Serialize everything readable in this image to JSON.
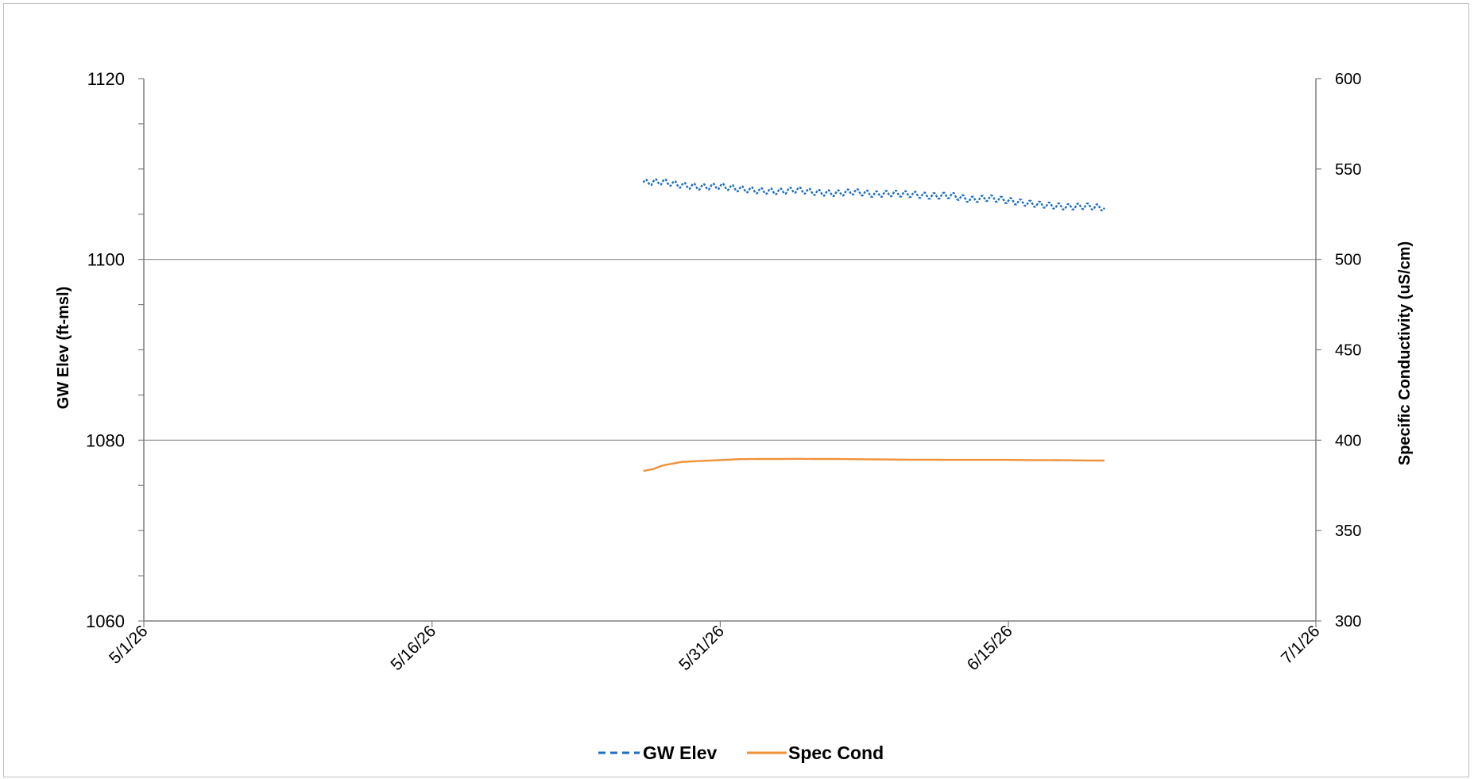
{
  "chart_data": {
    "type": "line",
    "x_axis": {
      "type": "date",
      "min": "2026-05-01",
      "max": "2026-07-01",
      "ticks": [
        {
          "date": "2026-05-01",
          "label": "5/1/26"
        },
        {
          "date": "2026-05-16",
          "label": "5/16/26"
        },
        {
          "date": "2026-05-31",
          "label": "5/31/26"
        },
        {
          "date": "2026-06-15",
          "label": "6/15/26"
        },
        {
          "date": "2026-07-01",
          "label": "7/1/26"
        }
      ]
    },
    "y_left": {
      "label": "GW Elev (ft-msl)",
      "min": 1060,
      "max": 1120,
      "ticks": [
        1060,
        1080,
        1100,
        1120
      ],
      "minor_step": 5
    },
    "y_right": {
      "label": "Specific Conductivity (uS/cm)",
      "min": 300,
      "max": 600,
      "ticks": [
        300,
        350,
        400,
        450,
        500,
        550,
        600
      ]
    },
    "gridlines_left": [
      1080,
      1100
    ],
    "legend": {
      "position": "bottom"
    },
    "series": [
      {
        "name": "GW Elev",
        "axis": "left",
        "color": "#1f6fc0",
        "style": "dashed",
        "x": [
          "2026-05-27",
          "2026-05-28",
          "2026-05-29",
          "2026-05-30",
          "2026-05-31",
          "2026-06-01",
          "2026-06-02",
          "2026-06-03",
          "2026-06-04",
          "2026-06-05",
          "2026-06-06",
          "2026-06-07",
          "2026-06-08",
          "2026-06-09",
          "2026-06-10",
          "2026-06-11",
          "2026-06-12",
          "2026-06-13",
          "2026-06-14",
          "2026-06-15",
          "2026-06-16",
          "2026-06-17",
          "2026-06-18",
          "2026-06-19",
          "2026-06-20"
        ],
        "y": [
          1108.5,
          1108.6,
          1108.2,
          1108.0,
          1108.1,
          1107.8,
          1107.6,
          1107.5,
          1107.7,
          1107.4,
          1107.3,
          1107.5,
          1107.2,
          1107.3,
          1107.2,
          1107.0,
          1107.1,
          1106.6,
          1106.8,
          1106.5,
          1106.2,
          1106.0,
          1105.8,
          1105.9,
          1105.7
        ],
        "oscillation": 0.35
      },
      {
        "name": "Spec Cond",
        "axis": "right",
        "color": "#f0913a",
        "style": "solid",
        "x": [
          "2026-05-27",
          "2026-05-27T12:00",
          "2026-05-28",
          "2026-05-29",
          "2026-05-30",
          "2026-05-31",
          "2026-06-01",
          "2026-06-02",
          "2026-06-03",
          "2026-06-04",
          "2026-06-05",
          "2026-06-06",
          "2026-06-07",
          "2026-06-08",
          "2026-06-09",
          "2026-06-10",
          "2026-06-11",
          "2026-06-12",
          "2026-06-13",
          "2026-06-14",
          "2026-06-15",
          "2026-06-16",
          "2026-06-17",
          "2026-06-18",
          "2026-06-19",
          "2026-06-20"
        ],
        "y": [
          383,
          384,
          386,
          388,
          388.5,
          389,
          389.5,
          389.6,
          389.6,
          389.7,
          389.6,
          389.6,
          389.5,
          389.4,
          389.3,
          389.2,
          389.2,
          389.1,
          389.1,
          389.1,
          389.1,
          389.0,
          389.0,
          388.9,
          388.8,
          388.7
        ]
      }
    ]
  }
}
